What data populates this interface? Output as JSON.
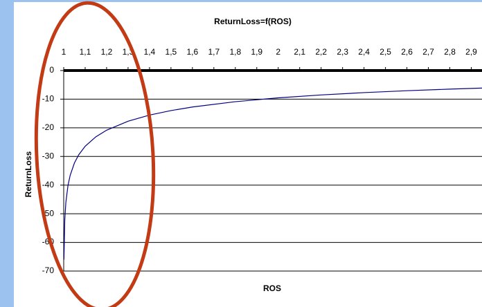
{
  "chart_data": {
    "type": "line",
    "title": "ReturnLoss=f(ROS)",
    "x_label": "ROS",
    "y_label": "ReturnLoss",
    "series": [
      {
        "name": "ReturnLoss",
        "color": "#000080",
        "x": [
          1.001,
          1.005,
          1.01,
          1.02,
          1.03,
          1.05,
          1.07,
          1.1,
          1.15,
          1.2,
          1.3,
          1.4,
          1.5,
          1.6,
          1.8,
          2.0,
          2.2,
          2.4,
          2.6,
          2.8,
          2.9,
          2.95
        ],
        "values": [
          -66.0,
          -52.06,
          -46.06,
          -40.09,
          -36.61,
          -32.26,
          -29.42,
          -26.44,
          -23.13,
          -20.83,
          -17.69,
          -15.56,
          -13.98,
          -12.74,
          -10.88,
          -9.54,
          -8.52,
          -7.71,
          -7.04,
          -6.49,
          -6.25,
          -6.13
        ]
      }
    ],
    "xlim": [
      1,
      2.95
    ],
    "xticks": [
      1,
      {
        "value": 1.1,
        "label": "1,1"
      },
      {
        "value": 1.2,
        "label": "1,2"
      },
      {
        "value": 1.3,
        "label": "1,3"
      },
      {
        "value": 1.4,
        "label": "1,4"
      },
      {
        "value": 1.5,
        "label": "1,5"
      },
      {
        "value": 1.6,
        "label": "1,6"
      },
      {
        "value": 1.7,
        "label": "1,7"
      },
      {
        "value": 1.8,
        "label": "1,8"
      },
      {
        "value": 1.9,
        "label": "1,9"
      },
      2,
      {
        "value": 2.1,
        "label": "2,1"
      },
      {
        "value": 2.2,
        "label": "2,2"
      },
      {
        "value": 2.3,
        "label": "2,3"
      },
      {
        "value": 2.4,
        "label": "2,4"
      },
      {
        "value": 2.5,
        "label": "2,5"
      },
      {
        "value": 2.6,
        "label": "2,6"
      },
      {
        "value": 2.7,
        "label": "2,7"
      },
      {
        "value": 2.8,
        "label": "2,8"
      },
      {
        "value": 2.9,
        "label": "2,9"
      }
    ],
    "ylim": [
      -70,
      0
    ],
    "yticks": [
      0,
      -10,
      -20,
      -30,
      -40,
      -50,
      -60,
      -70
    ],
    "grid": true
  }
}
